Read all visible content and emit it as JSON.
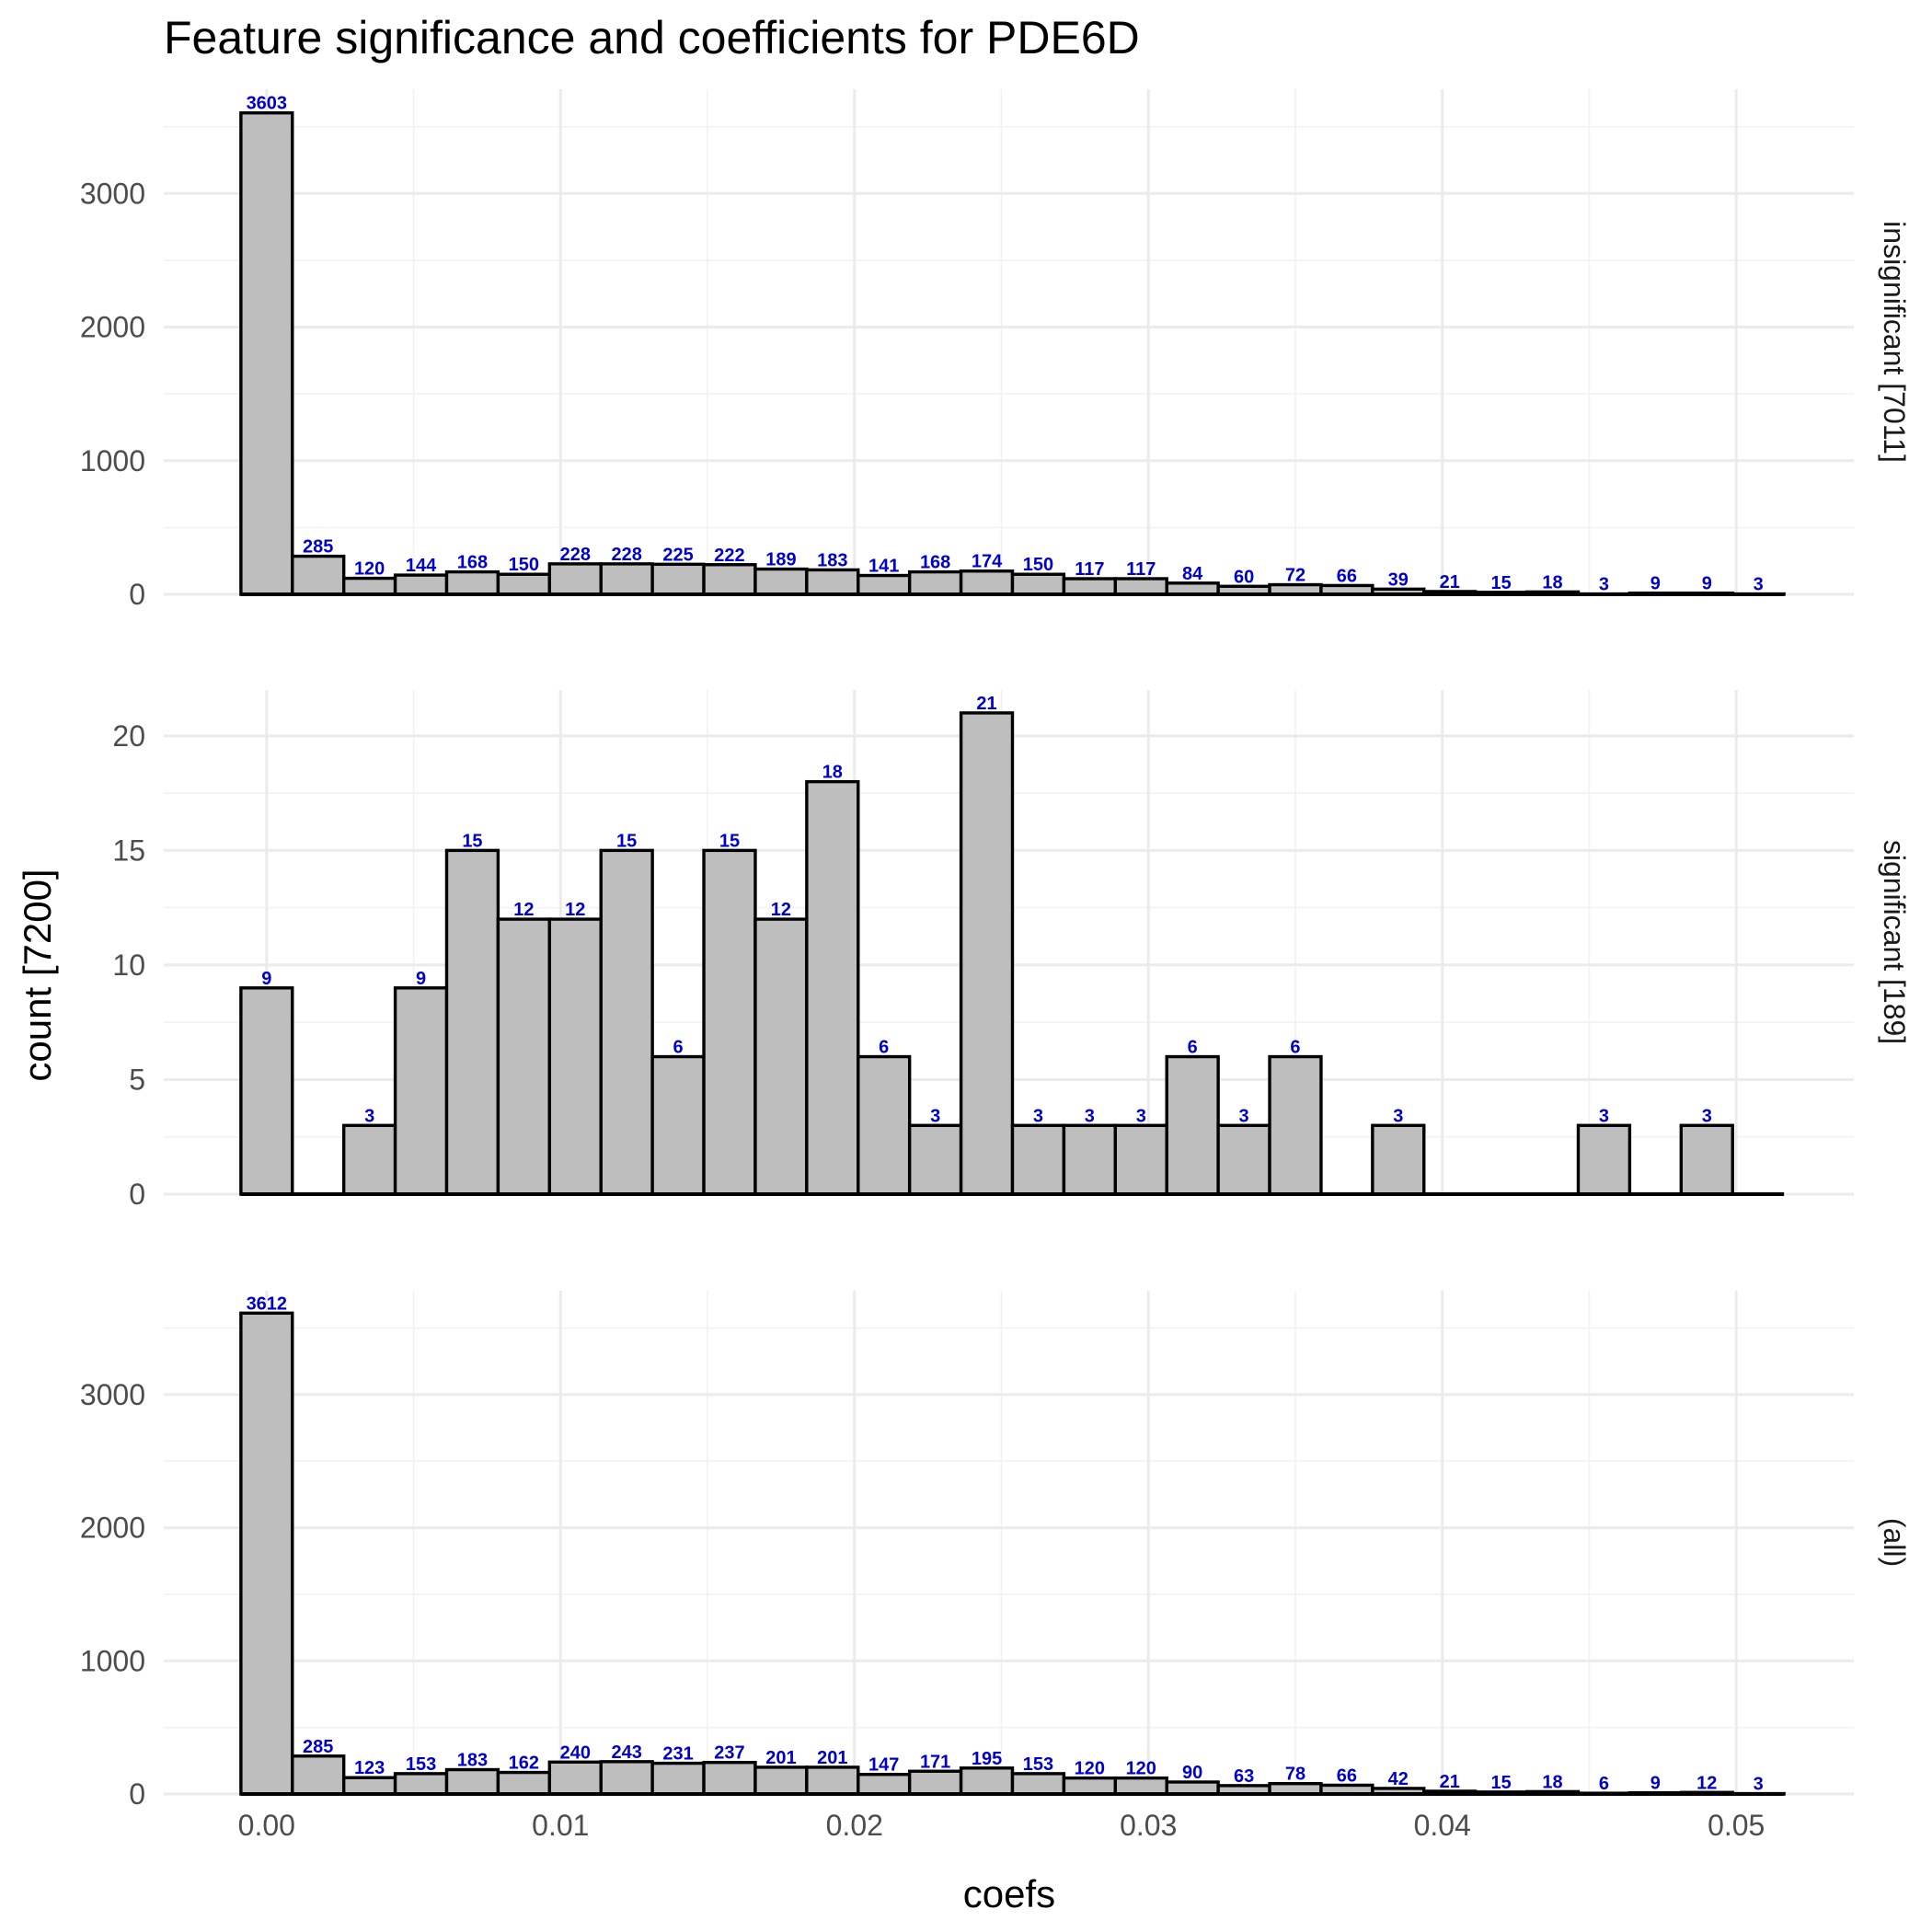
{
  "chart_data": {
    "type": "bar",
    "title": "Feature significance and coefficients for PDE6D",
    "xlabel": "coefs",
    "ylabel": "count [7200]",
    "xlim": [
      -0.0035,
      0.054
    ],
    "x_ticks": [
      "0.00",
      "0.01",
      "0.02",
      "0.03",
      "0.04",
      "0.05"
    ],
    "x_tick_values": [
      0,
      0.01,
      0.02,
      0.03,
      0.04,
      0.05
    ],
    "bin_width": 0.00175,
    "bin_centers": [
      0,
      0.00175,
      0.0035,
      0.00525,
      0.007,
      0.00875,
      0.0105,
      0.01225,
      0.014,
      0.01575,
      0.0175,
      0.01925,
      0.021,
      0.02275,
      0.0245,
      0.02625,
      0.028,
      0.02975,
      0.0315,
      0.03325,
      0.035,
      0.03675,
      0.0385,
      0.04025,
      0.042,
      0.04375,
      0.0455,
      0.04725,
      0.049,
      0.05075
    ],
    "grid": true,
    "panels": [
      {
        "strip": "insignificant [7011]",
        "ylim": [
          0,
          3780
        ],
        "y_ticks": [
          0,
          1000,
          2000,
          3000
        ],
        "y_tick_labels": [
          "0",
          "1000",
          "2000",
          "3000"
        ],
        "values": [
          3603,
          285,
          120,
          144,
          168,
          150,
          228,
          228,
          225,
          222,
          189,
          183,
          141,
          168,
          174,
          150,
          117,
          117,
          84,
          60,
          72,
          66,
          39,
          21,
          15,
          18,
          3,
          9,
          9,
          3
        ]
      },
      {
        "strip": "significant [189]",
        "ylim": [
          0,
          22
        ],
        "y_ticks": [
          0,
          5,
          10,
          15,
          20
        ],
        "y_tick_labels": [
          "0",
          "5",
          "10",
          "15",
          "20"
        ],
        "values": [
          9,
          0,
          3,
          9,
          15,
          12,
          12,
          15,
          6,
          15,
          12,
          18,
          6,
          3,
          21,
          3,
          3,
          3,
          6,
          3,
          6,
          0,
          3,
          0,
          0,
          0,
          3,
          0,
          3,
          0
        ]
      },
      {
        "strip": "(all)",
        "ylim": [
          0,
          3780
        ],
        "y_ticks": [
          0,
          1000,
          2000,
          3000
        ],
        "y_tick_labels": [
          "0",
          "1000",
          "2000",
          "3000"
        ],
        "values": [
          3612,
          285,
          123,
          153,
          183,
          162,
          240,
          243,
          231,
          237,
          201,
          201,
          147,
          171,
          195,
          153,
          120,
          120,
          90,
          63,
          78,
          66,
          42,
          21,
          15,
          18,
          6,
          9,
          12,
          3
        ]
      }
    ],
    "colors": {
      "bar_fill": "#bebebe",
      "bar_stroke": "#000000",
      "data_label": "#0000cc",
      "grid": "#ebebeb"
    }
  }
}
